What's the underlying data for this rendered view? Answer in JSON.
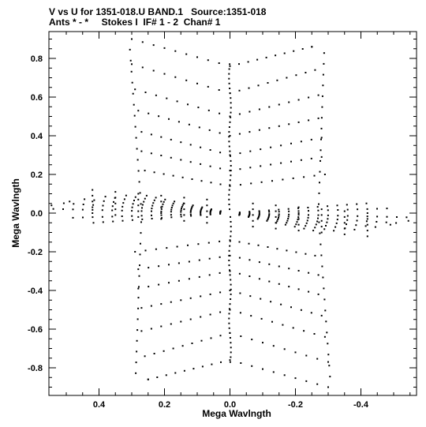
{
  "header": {
    "line1": "V vs U for 1351-018.U BAND.1   Source:1351-018",
    "line2": "Ants * - *     Stokes I  IF# 1 - 2  Chan# 1"
  },
  "chart_data": {
    "type": "scatter",
    "title": "V vs U for 1351-018.U BAND.1   Source:1351-018",
    "subtitle": "Ants * - *     Stokes I  IF# 1 - 2  Chan# 1",
    "xlabel": "Mega Wavlngth",
    "ylabel": "Mega Wavlngth",
    "xlim": [
      0.56,
      -0.56
    ],
    "ylim": [
      -0.95,
      0.95
    ],
    "x_reversed": true,
    "grid": false,
    "xticks": [
      0.4,
      0.2,
      0.0,
      -0.2,
      -0.4
    ],
    "xtick_labels": [
      "0.4",
      "0.2",
      "0.0",
      "-0.2",
      "-0.4"
    ],
    "yticks": [
      0.8,
      0.6,
      0.4,
      0.2,
      0.0,
      -0.2,
      -0.4,
      -0.6,
      -0.8
    ],
    "ytick_labels": [
      "0.8",
      "0.6",
      "0.4",
      "0.2",
      "0.0",
      "-0.2",
      "-0.4",
      "-0.6",
      "-0.8"
    ],
    "marker_color": "#000000",
    "pattern": {
      "description_of_sampling": "uv tracks: chevron arcs along v axis plus diagonal arms",
      "vertical_arcs": [
        {
          "u_left": 0.3,
          "u_right": -0.25,
          "v_left": 0.9,
          "v_right": 0.86,
          "v_mid": 0.76
        },
        {
          "u_left": 0.3,
          "u_right": -0.26,
          "v_left": 0.77,
          "v_right": 0.74,
          "v_mid": 0.62
        },
        {
          "u_left": 0.29,
          "u_right": -0.27,
          "v_left": 0.64,
          "v_right": 0.61,
          "v_mid": 0.5
        },
        {
          "u_left": 0.28,
          "u_right": -0.27,
          "v_left": 0.53,
          "v_right": 0.49,
          "v_mid": 0.4
        },
        {
          "u_left": 0.27,
          "u_right": -0.28,
          "v_left": 0.42,
          "v_right": 0.39,
          "v_mid": 0.3
        },
        {
          "u_left": 0.27,
          "u_right": -0.28,
          "v_left": 0.32,
          "v_right": 0.29,
          "v_mid": 0.22
        },
        {
          "u_left": 0.26,
          "u_right": -0.29,
          "v_left": 0.22,
          "v_right": 0.2,
          "v_mid": 0.14
        }
      ],
      "lower_arcs": [
        {
          "u_left": 0.23,
          "u_right": -0.31,
          "v_left": -0.86,
          "v_right": -0.9,
          "v_mid": -0.76
        },
        {
          "u_left": 0.24,
          "u_right": -0.3,
          "v_left": -0.73,
          "v_right": -0.77,
          "v_mid": -0.62
        },
        {
          "u_left": 0.25,
          "u_right": -0.29,
          "v_left": -0.61,
          "v_right": -0.64,
          "v_mid": -0.5
        },
        {
          "u_left": 0.26,
          "u_right": -0.28,
          "v_left": -0.5,
          "v_right": -0.53,
          "v_mid": -0.4
        },
        {
          "u_left": 0.27,
          "u_right": -0.28,
          "v_left": -0.39,
          "v_right": -0.42,
          "v_mid": -0.3
        },
        {
          "u_left": 0.27,
          "u_right": -0.27,
          "v_left": -0.29,
          "v_right": -0.32,
          "v_mid": -0.22
        },
        {
          "u_left": 0.28,
          "u_right": -0.27,
          "v_left": -0.19,
          "v_right": -0.22,
          "v_mid": -0.14
        }
      ]
    }
  }
}
